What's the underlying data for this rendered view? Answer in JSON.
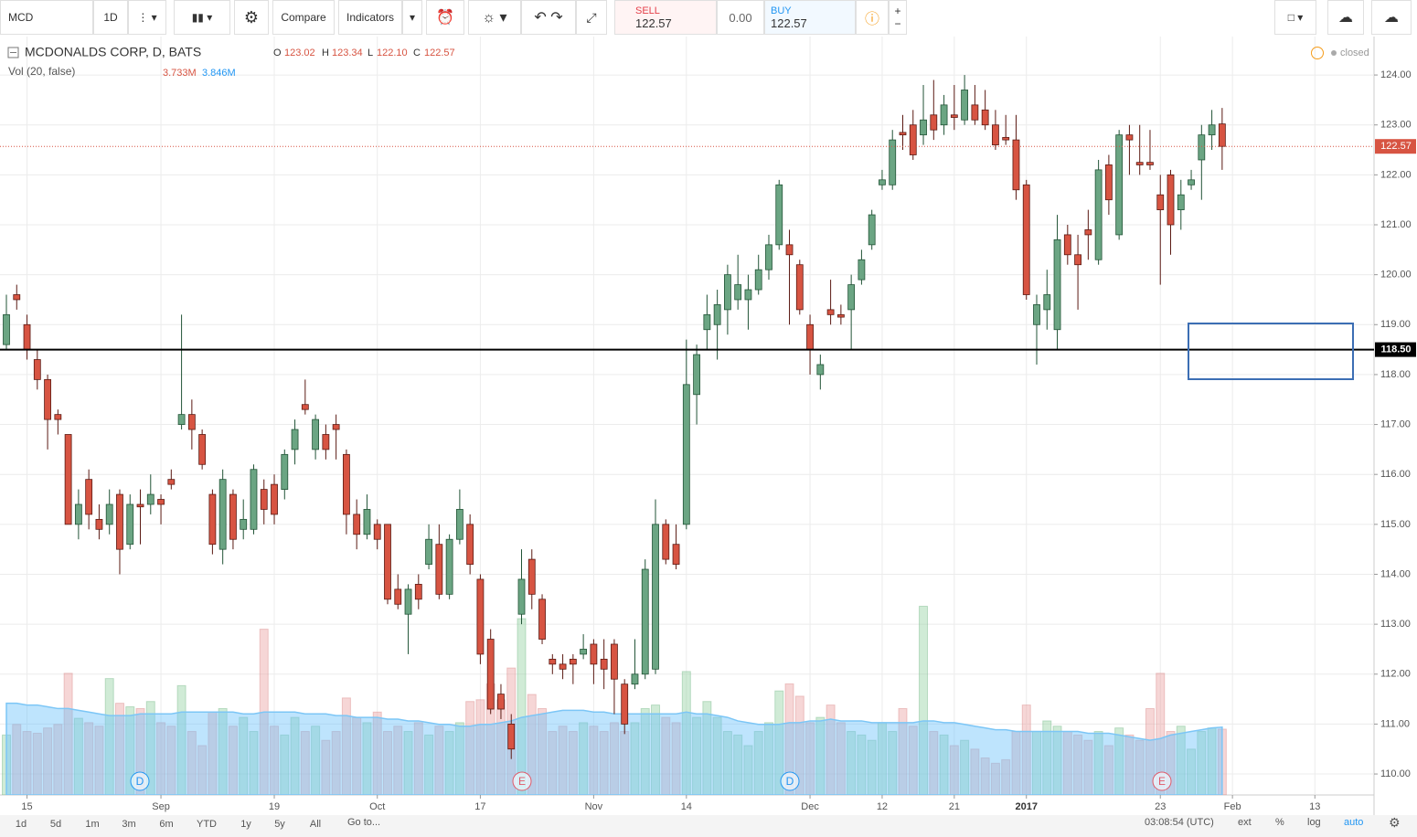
{
  "toolbar": {
    "symbol": "MCD",
    "interval": "1D",
    "compare": "Compare",
    "indicators": "Indicators",
    "sell_label": "SELL",
    "sell_price": "122.57",
    "spread": "0.00",
    "buy_label": "BUY",
    "buy_price": "122.57"
  },
  "legend": {
    "title": "MCDONALDS CORP, D, BATS",
    "o": "O",
    "open": "123.02",
    "h": "H",
    "high": "123.34",
    "l": "L",
    "low": "122.10",
    "c": "C",
    "close": "122.57",
    "vol": "Vol (20, false)",
    "vol_value": "3.733M",
    "vol_ma": "3.846M",
    "status": "closed"
  },
  "bottom_bar": {
    "ranges": [
      "1d",
      "5d",
      "1m",
      "3m",
      "6m",
      "YTD",
      "1y",
      "5y",
      "All"
    ],
    "goto": "Go to...",
    "time": "03:08:54 (UTC)",
    "ext": "ext",
    "percent": "%",
    "log": "log",
    "auto": "auto"
  },
  "chart_data": {
    "type": "candlestick",
    "categories": [
      null,
      null,
      "15",
      null,
      null,
      null,
      null,
      null,
      null,
      null,
      null,
      null,
      null,
      null,
      null,
      "Sep",
      null,
      null,
      null,
      null,
      null,
      null,
      null,
      null,
      null,
      null,
      "19",
      null,
      null,
      null,
      null,
      null,
      null,
      null,
      null,
      null,
      "Oct",
      null,
      null,
      null,
      null,
      null,
      null,
      null,
      null,
      null,
      "17",
      null,
      null,
      null,
      null,
      null,
      null,
      null,
      null,
      null,
      null,
      "Nov",
      null,
      null,
      null,
      null,
      null,
      null,
      null,
      null,
      "14",
      null,
      null,
      null,
      null,
      null,
      null,
      null,
      null,
      null,
      null,
      null,
      "Dec",
      null,
      null,
      null,
      null,
      null,
      null,
      "12",
      null,
      null,
      null,
      null,
      null,
      null,
      "21",
      null,
      null,
      null,
      null,
      null,
      null,
      "2017",
      null,
      null,
      null,
      null,
      null,
      null,
      null,
      null,
      null,
      null,
      null,
      null,
      "23",
      null,
      null,
      null,
      null,
      null,
      null,
      "Feb",
      null,
      null,
      null,
      null,
      null,
      null,
      null,
      "13"
    ],
    "open": [
      118.6,
      119.6,
      119.0,
      118.3,
      117.9,
      117.2,
      116.8,
      115.0,
      115.9,
      115.1,
      115.0,
      115.6,
      114.6,
      115.4,
      115.4,
      115.5,
      115.9,
      117.0,
      117.2,
      116.8,
      115.6,
      114.5,
      115.6,
      114.9,
      114.9,
      115.7,
      115.8,
      115.7,
      116.5,
      117.4,
      116.5,
      116.8,
      117.0,
      116.4,
      115.2,
      114.8,
      115.0,
      115.0,
      113.7,
      113.2,
      113.8,
      114.2,
      114.6,
      113.6,
      114.7,
      115.0,
      113.9,
      112.7,
      111.6,
      111.0,
      113.2,
      114.3,
      113.5,
      112.3,
      112.2,
      112.3,
      112.4,
      112.6,
      112.3,
      112.6,
      111.8,
      111.8,
      112.0,
      112.1,
      115.0,
      114.6,
      115.0,
      117.6,
      118.9,
      119.0,
      119.3,
      119.5,
      119.5,
      119.7,
      120.1,
      120.6,
      120.6,
      120.2,
      119.0,
      118.0,
      119.3,
      119.2,
      119.3,
      119.9,
      120.6,
      121.8,
      121.8,
      122.85,
      123.0,
      122.8,
      123.2,
      123.0,
      123.2,
      123.1,
      123.4,
      123.3,
      123.0,
      122.75,
      122.7,
      121.8,
      119.0,
      119.3,
      118.9,
      120.8,
      120.4,
      120.9,
      120.3,
      122.2,
      120.8,
      122.8,
      122.25,
      122.25,
      121.6,
      122.0,
      121.3,
      121.8,
      122.3,
      122.8,
      123.02,
      null,
      null,
      null,
      null,
      null,
      null,
      null,
      null,
      null
    ],
    "high": [
      119.6,
      119.8,
      119.2,
      118.5,
      118.0,
      117.3,
      116.8,
      115.7,
      116.1,
      115.4,
      115.7,
      115.7,
      115.6,
      115.7,
      116.0,
      115.6,
      116.1,
      119.2,
      117.5,
      116.9,
      115.7,
      116.1,
      115.7,
      115.5,
      116.2,
      115.9,
      116.0,
      116.5,
      117.1,
      117.9,
      117.2,
      117.0,
      117.2,
      116.5,
      115.5,
      115.6,
      115.1,
      115.0,
      114.0,
      113.8,
      114.0,
      115.0,
      115.0,
      114.8,
      115.7,
      115.2,
      114.0,
      112.9,
      111.8,
      111.2,
      114.5,
      114.5,
      113.6,
      112.4,
      112.4,
      112.4,
      112.8,
      112.7,
      112.7,
      112.7,
      111.9,
      112.7,
      114.3,
      115.5,
      115.1,
      115.0,
      118.7,
      118.6,
      119.6,
      119.7,
      120.2,
      120.4,
      120.0,
      120.4,
      120.8,
      121.9,
      120.9,
      120.3,
      119.2,
      118.4,
      119.9,
      119.4,
      120.0,
      120.5,
      121.3,
      122.1,
      122.9,
      123.2,
      123.3,
      123.8,
      123.9,
      123.6,
      123.8,
      124.0,
      123.8,
      123.7,
      123.3,
      123.2,
      123.2,
      121.9,
      119.6,
      120.1,
      121.2,
      121.0,
      120.8,
      121.3,
      122.3,
      122.4,
      122.9,
      123.0,
      123.0,
      122.9,
      122.0,
      122.1,
      121.9,
      122.1,
      123.0,
      123.3,
      123.34,
      null,
      null,
      null,
      null,
      null,
      null,
      null,
      null,
      null
    ],
    "low": [
      118.5,
      119.3,
      118.3,
      117.7,
      116.5,
      116.8,
      115.0,
      114.7,
      114.9,
      114.7,
      114.8,
      114.0,
      114.5,
      114.6,
      115.2,
      115.0,
      115.7,
      116.9,
      116.5,
      116.1,
      114.4,
      114.2,
      114.5,
      114.7,
      114.8,
      115.0,
      115.0,
      115.5,
      116.2,
      117.2,
      116.3,
      116.3,
      116.3,
      114.8,
      114.5,
      114.7,
      114.5,
      113.4,
      113.3,
      112.4,
      113.3,
      114.1,
      113.5,
      113.5,
      114.6,
      114.0,
      112.2,
      111.2,
      111.1,
      110.3,
      113.0,
      113.3,
      112.6,
      112.0,
      111.9,
      111.8,
      112.3,
      111.8,
      111.7,
      111.2,
      110.8,
      111.7,
      111.9,
      112.0,
      114.2,
      114.1,
      114.9,
      117.0,
      118.5,
      118.3,
      118.8,
      119.3,
      118.9,
      119.6,
      119.9,
      120.5,
      119.0,
      119.2,
      118.0,
      117.7,
      119.0,
      119.0,
      118.5,
      119.8,
      120.5,
      121.7,
      121.7,
      122.5,
      122.3,
      122.6,
      122.7,
      122.8,
      122.9,
      123.0,
      123.0,
      122.9,
      122.5,
      122.6,
      121.5,
      119.5,
      118.2,
      118.9,
      118.5,
      120.2,
      119.3,
      120.3,
      120.2,
      121.2,
      120.7,
      122.0,
      122.0,
      122.1,
      119.8,
      120.4,
      120.9,
      121.7,
      121.5,
      122.5,
      122.1,
      null,
      null,
      null,
      null,
      null,
      null,
      null,
      null,
      null
    ],
    "close": [
      119.2,
      119.5,
      118.5,
      117.9,
      117.1,
      117.1,
      115.0,
      115.4,
      115.2,
      114.9,
      115.4,
      114.5,
      115.4,
      115.35,
      115.6,
      115.4,
      115.8,
      117.2,
      116.9,
      116.2,
      114.6,
      115.9,
      114.7,
      115.1,
      116.1,
      115.3,
      115.2,
      116.4,
      116.9,
      117.3,
      117.1,
      116.5,
      116.9,
      115.2,
      114.8,
      115.3,
      114.7,
      113.5,
      113.4,
      113.7,
      113.5,
      114.7,
      113.6,
      114.7,
      115.3,
      114.2,
      112.4,
      111.3,
      111.3,
      110.5,
      113.9,
      113.6,
      112.7,
      112.2,
      112.1,
      112.2,
      112.5,
      112.2,
      112.1,
      111.9,
      111.0,
      112.0,
      114.1,
      115.0,
      114.3,
      114.2,
      117.8,
      118.4,
      119.2,
      119.4,
      120.0,
      119.8,
      119.7,
      120.1,
      120.6,
      121.8,
      120.4,
      119.3,
      118.5,
      118.2,
      119.2,
      119.15,
      119.8,
      120.3,
      121.2,
      121.9,
      122.7,
      122.8,
      122.4,
      123.1,
      122.9,
      123.4,
      123.15,
      123.7,
      123.1,
      123.0,
      122.6,
      122.7,
      121.7,
      119.6,
      119.4,
      119.6,
      120.7,
      120.4,
      120.2,
      120.8,
      122.1,
      121.5,
      122.8,
      122.7,
      122.2,
      122.2,
      121.3,
      121.0,
      121.6,
      121.9,
      122.8,
      123.0,
      122.57,
      null,
      null,
      null,
      null,
      null,
      null,
      null,
      null,
      null
    ],
    "volume": [
      3.4,
      4.0,
      3.6,
      3.5,
      3.8,
      4.0,
      6.9,
      4.35,
      4.1,
      3.9,
      6.6,
      5.2,
      5.0,
      4.9,
      5.3,
      4.1,
      3.9,
      6.2,
      3.6,
      2.8,
      4.7,
      4.9,
      3.9,
      4.4,
      3.6,
      9.4,
      3.9,
      3.4,
      4.4,
      3.6,
      3.9,
      3.1,
      3.6,
      5.5,
      4.4,
      4.1,
      4.7,
      3.6,
      3.9,
      3.6,
      4.1,
      3.4,
      3.9,
      3.6,
      4.1,
      5.3,
      5.4,
      6.3,
      5.4,
      7.2,
      10.0,
      5.7,
      4.9,
      3.6,
      3.9,
      3.6,
      4.1,
      3.9,
      3.6,
      4.1,
      3.6,
      4.1,
      4.9,
      5.1,
      4.4,
      4.1,
      7.0,
      4.4,
      5.3,
      4.4,
      3.6,
      3.4,
      2.8,
      3.6,
      4.1,
      5.9,
      6.3,
      5.6,
      4.1,
      4.4,
      5.1,
      4.1,
      3.6,
      3.4,
      3.1,
      4.1,
      3.6,
      4.9,
      3.9,
      10.7,
      3.6,
      3.4,
      2.8,
      3.1,
      2.6,
      2.1,
      1.8,
      2.0,
      3.6,
      5.1,
      3.6,
      4.2,
      3.9,
      3.6,
      3.4,
      3.1,
      3.6,
      2.8,
      3.8,
      3.4,
      3.1,
      4.9,
      6.9,
      3.6,
      3.9,
      2.6,
      3.6,
      3.8,
      3.733,
      null,
      null,
      null,
      null,
      null,
      null,
      null,
      null,
      null
    ],
    "volume_ma": [
      5.2,
      5.2,
      5.1,
      5.1,
      5.0,
      4.9,
      4.9,
      4.8,
      4.7,
      4.6,
      4.5,
      4.5,
      4.5,
      4.6,
      4.6,
      4.6,
      4.6,
      4.7,
      4.7,
      4.7,
      4.7,
      4.7,
      4.7,
      4.6,
      4.6,
      4.7,
      4.7,
      4.7,
      4.7,
      4.6,
      4.6,
      4.6,
      4.5,
      4.5,
      4.4,
      4.4,
      4.4,
      4.3,
      4.3,
      4.2,
      4.2,
      4.1,
      4.0,
      4.0,
      3.9,
      3.9,
      4.0,
      4.0,
      4.1,
      4.2,
      4.4,
      4.5,
      4.6,
      4.7,
      4.8,
      4.8,
      4.8,
      4.7,
      4.7,
      4.6,
      4.6,
      4.6,
      4.6,
      4.6,
      4.6,
      4.6,
      4.7,
      4.6,
      4.6,
      4.5,
      4.4,
      4.2,
      4.1,
      4.0,
      4.0,
      4.0,
      4.1,
      4.1,
      4.2,
      4.2,
      4.3,
      4.2,
      4.2,
      4.2,
      4.1,
      4.1,
      4.1,
      4.1,
      4.1,
      4.2,
      4.2,
      4.1,
      4.1,
      4.0,
      3.9,
      3.8,
      3.7,
      3.7,
      3.6,
      3.6,
      3.6,
      3.6,
      3.6,
      3.6,
      3.6,
      3.5,
      3.5,
      3.5,
      3.4,
      3.3,
      3.2,
      3.1,
      3.2,
      3.4,
      3.5,
      3.6,
      3.7,
      3.8,
      3.846,
      null,
      null,
      null,
      null,
      null,
      null,
      null,
      null,
      null
    ],
    "up_color": "#6ba583",
    "down_color": "#d75442",
    "ylim": [
      109.58,
      124.77
    ],
    "yticks": [
      {
        "value": 110,
        "label": "110.00"
      },
      {
        "value": 111,
        "label": "111.00"
      },
      {
        "value": 112,
        "label": "112.00"
      },
      {
        "value": 113,
        "label": "113.00"
      },
      {
        "value": 114,
        "label": "114.00"
      },
      {
        "value": 115,
        "label": "115.00"
      },
      {
        "value": 116,
        "label": "116.00"
      },
      {
        "value": 117,
        "label": "117.00"
      },
      {
        "value": 118,
        "label": "118.00"
      },
      {
        "value": 119,
        "label": "119.00"
      },
      {
        "value": 120,
        "label": "120.00"
      },
      {
        "value": 121,
        "label": "121.00"
      },
      {
        "value": 122,
        "label": "122.00"
      },
      {
        "value": 123,
        "label": "123.00"
      },
      {
        "value": 124,
        "label": "124.00"
      }
    ],
    "hline": {
      "value": 118.5,
      "label": "118.50"
    },
    "events": [
      "D",
      "E",
      "D",
      "E"
    ],
    "grid": true
  }
}
